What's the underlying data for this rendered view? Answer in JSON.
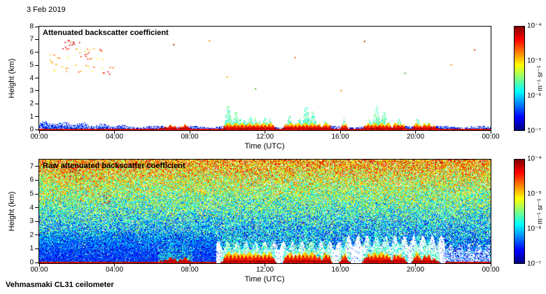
{
  "header": {
    "date_label": "3 Feb 2019"
  },
  "footer": {
    "instrument_label": "Vehmasmaki CL31 ceilometer"
  },
  "chart_data": [
    {
      "type": "heatmap",
      "title": "Attenuated backscatter coefficient",
      "xlabel": "Time (UTC)",
      "ylabel": "Height (km)",
      "x_ticks": [
        "00:00",
        "04:00",
        "08:00",
        "12:00",
        "16:00",
        "20:00",
        "00:00"
      ],
      "x_range_hours": [
        0,
        24
      ],
      "y_ticks": [
        0,
        1,
        2,
        3,
        4,
        5,
        6,
        7,
        8
      ],
      "ylim": [
        0,
        8
      ],
      "grid": false,
      "colorbar": {
        "label": "m⁻¹ sr⁻¹",
        "scale": "log",
        "ticks": [
          "10⁻⁴",
          "10⁻⁵",
          "10⁻⁶",
          "10⁻⁷"
        ],
        "value_range": [
          1e-07,
          0.0001
        ],
        "colormap": "jet",
        "colormap_stops": [
          "#000080",
          "#0000ff",
          "#0080ff",
          "#00ffff",
          "#80ff80",
          "#ffff00",
          "#ff8000",
          "#ff0000",
          "#800000"
        ]
      },
      "features": {
        "boundary_layer": {
          "night_top_km": 0.6,
          "day_top_km": 0.28,
          "appearance": "shallow blue speckle aerosol layer hugging the surface all day"
        },
        "surface_return": {
          "top_km": 0.1,
          "appearance": "continuous dark-red line at 0 km"
        },
        "precip_events": [
          {
            "start_h": 6.3,
            "end_h": 8.15,
            "top_km": 0.35,
            "spikes": []
          },
          {
            "start_h": 9.65,
            "end_h": 12.6,
            "top_km": 0.8,
            "spikes": [
              {
                "h": 10.05,
                "top_km": 1.9
              },
              {
                "h": 10.45,
                "top_km": 1.4
              },
              {
                "h": 11.2,
                "top_km": 1.15
              },
              {
                "h": 12.0,
                "top_km": 1.0
              }
            ]
          },
          {
            "start_h": 12.95,
            "end_h": 15.6,
            "top_km": 0.75,
            "spikes": [
              {
                "h": 13.3,
                "top_km": 1.1
              },
              {
                "h": 14.2,
                "top_km": 1.95
              },
              {
                "h": 14.55,
                "top_km": 1.5
              }
            ]
          },
          {
            "start_h": 15.95,
            "end_h": 16.55,
            "top_km": 0.45,
            "spikes": [
              {
                "h": 16.2,
                "top_km": 0.9
              }
            ]
          },
          {
            "start_h": 17.15,
            "end_h": 19.6,
            "top_km": 0.75,
            "spikes": [
              {
                "h": 17.95,
                "top_km": 2.0
              },
              {
                "h": 18.35,
                "top_km": 1.4
              }
            ]
          },
          {
            "start_h": 19.8,
            "end_h": 21.3,
            "top_km": 0.55,
            "spikes": [
              {
                "h": 20.1,
                "top_km": 0.85
              }
            ]
          }
        ],
        "aloft_plumes": [
          {
            "t_h": [
              0.55,
              1.5
            ],
            "km": [
              4.55,
              5.9
            ],
            "intensity": [
              0.6,
              0.8
            ],
            "density": 0.1
          },
          {
            "t_h": [
              1.15,
              2.3
            ],
            "km": [
              6.2,
              7.15
            ],
            "intensity": [
              0.8,
              1.0
            ],
            "density": 0.12
          },
          {
            "t_h": [
              1.9,
              3.35
            ],
            "km": [
              4.5,
              6.4
            ],
            "intensity": [
              0.62,
              0.9
            ],
            "density": 0.08
          },
          {
            "t_h": [
              3.3,
              3.95
            ],
            "km": [
              4.3,
              5.0
            ],
            "intensity": [
              0.75,
              0.95
            ],
            "density": 0.1
          }
        ],
        "isolated_specks": [
          {
            "t_h": 7.15,
            "km": 6.6,
            "color": "#cc2a00"
          },
          {
            "t_h": 9.05,
            "km": 6.9,
            "color": "#ff8800"
          },
          {
            "t_h": 10.0,
            "km": 4.1,
            "color": "#ffaa00"
          },
          {
            "t_h": 11.5,
            "km": 3.2,
            "color": "#55bb33"
          },
          {
            "t_h": 13.6,
            "km": 5.6,
            "color": "#ff6600"
          },
          {
            "t_h": 16.05,
            "km": 3.05,
            "color": "#ff8800"
          },
          {
            "t_h": 17.3,
            "km": 6.85,
            "color": "#cc2a00"
          },
          {
            "t_h": 19.45,
            "km": 4.4,
            "color": "#44aa44"
          },
          {
            "t_h": 21.9,
            "km": 5.05,
            "color": "#ff8800"
          },
          {
            "t_h": 23.15,
            "km": 6.2,
            "color": "#ee4400"
          }
        ]
      }
    },
    {
      "type": "heatmap",
      "title": "Raw attenuated backscatter coefficient",
      "xlabel": "Time (UTC)",
      "ylabel": "Height (km)",
      "x_ticks": [
        "00:00",
        "04:00",
        "08:00",
        "12:00",
        "16:00",
        "20:00",
        "00:00"
      ],
      "x_range_hours": [
        0,
        24
      ],
      "y_ticks": [
        0,
        1,
        2,
        3,
        4,
        5,
        6,
        7
      ],
      "ylim": [
        0,
        7.5
      ],
      "grid": false,
      "colorbar": {
        "label": "m⁻¹ sr⁻¹",
        "scale": "log",
        "ticks": [
          "10⁻⁴",
          "10⁻⁵",
          "10⁻⁶",
          "10⁻⁷"
        ],
        "value_range": [
          1e-07,
          0.0001
        ],
        "colormap": "jet",
        "colormap_stops": [
          "#000080",
          "#0000ff",
          "#0080ff",
          "#00ffff",
          "#80ff80",
          "#ffff00",
          "#ff8000",
          "#ff0000",
          "#800000"
        ]
      },
      "features": {
        "noise": {
          "appearance": "dense rainbow speckle noise filling the panel, intensity increasing with height",
          "amp_bottom": 0.16,
          "amp_top": 0.7,
          "white_gap_probability": 0.09
        },
        "night_low_blue": {
          "t_h": [
            0,
            9.4
          ],
          "top_km": 2.2,
          "appearance": "dense blue speckle near surface before ~09:30"
        },
        "clear_low_windows": [
          {
            "t_h": [
              9.4,
              16.2
            ],
            "top_km": 1.25,
            "speck_density": 0.06
          },
          {
            "t_h": [
              16.2,
              21.6
            ],
            "top_km": 1.6,
            "speck_density": 0.08
          },
          {
            "t_h": [
              21.6,
              24
            ],
            "top_km": 1.1,
            "speck_density": 0.45
          }
        ],
        "precip_events": "same events as top panel, stronger red cores with green halos",
        "aloft_plumes": "same orange plumes as top panel around 01:00-03:30, 4-7 km"
      }
    }
  ]
}
